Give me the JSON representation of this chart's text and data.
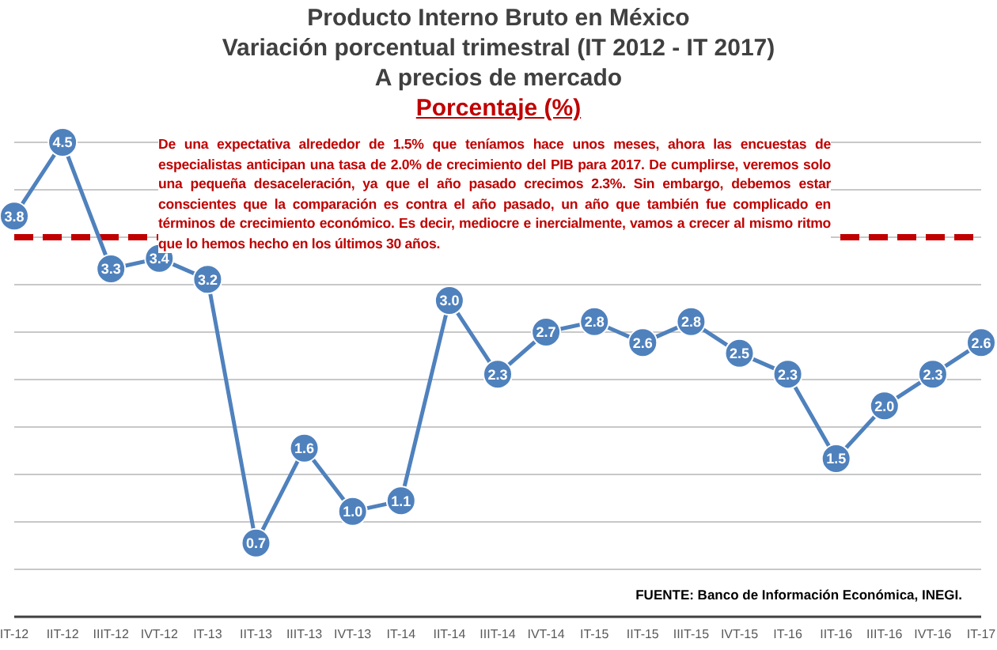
{
  "chart_data": {
    "type": "line",
    "title": "Producto Interno Bruto en México",
    "subtitle": "Variación porcentual trimestral (IT 2012 - IT 2017)\nA precios de mercado",
    "ylabel": "Porcentaje (%)",
    "categories": [
      "IT-12",
      "IIT-12",
      "IIIT-12",
      "IVT-12",
      "IT-13",
      "IIT-13",
      "IIIT-13",
      "IVT-13",
      "IT-14",
      "IIT-14",
      "IIIT-14",
      "IVT-14",
      "IT-15",
      "IIT-15",
      "IIIT-15",
      "IVT-15",
      "IT-16",
      "IIT-16",
      "IIIT-16",
      "IVT-16",
      "IT-17"
    ],
    "series": [
      {
        "color": "#4f81bd",
        "values": [
          3.8,
          4.5,
          3.3,
          3.4,
          3.2,
          0.7,
          1.6,
          1.0,
          1.1,
          3.0,
          2.3,
          2.7,
          2.8,
          2.6,
          2.8,
          2.5,
          2.3,
          1.5,
          2.0,
          2.3,
          2.6
        ],
        "value_labels": [
          "3.8",
          "4.5",
          "3.3",
          "3.4",
          "3.2",
          "0.7",
          "1.6",
          "1.0",
          "1.1",
          "3.0",
          "2.3",
          "2.7",
          "2.8",
          "2.6",
          "2.8",
          "2.5",
          "2.3",
          "1.5",
          "2.0",
          "2.3",
          "2.6"
        ]
      }
    ],
    "tick_labels": "x",
    "grid": "y",
    "marker": "circle",
    "line_style": "solid",
    "ref_lines": [
      {
        "axis": "y",
        "value": 3.6,
        "color": "#c00000",
        "line_style": "dashed"
      }
    ],
    "annotations": [
      "De una expectativa alrededor de 1.5% que teníamos hace unos meses, ahora las encuestas de especialistas anticipan una tasa de 2.0% de crecimiento del PIB para 2017. De cumplirse, veremos solo una pequeña desaceleración, ya que el año pasado crecimos 2.3%. Sin embargo, debemos estar conscientes que la comparación es contra el año pasado, un año que también fue complicado en términos de crecimiento económico. Es decir, mediocre e inercialmente, vamos a crecer al mismo ritmo que lo hemos hecho en los últimos 30 años.",
      "FUENTE: Banco de Información Económica, INEGI."
    ]
  }
}
